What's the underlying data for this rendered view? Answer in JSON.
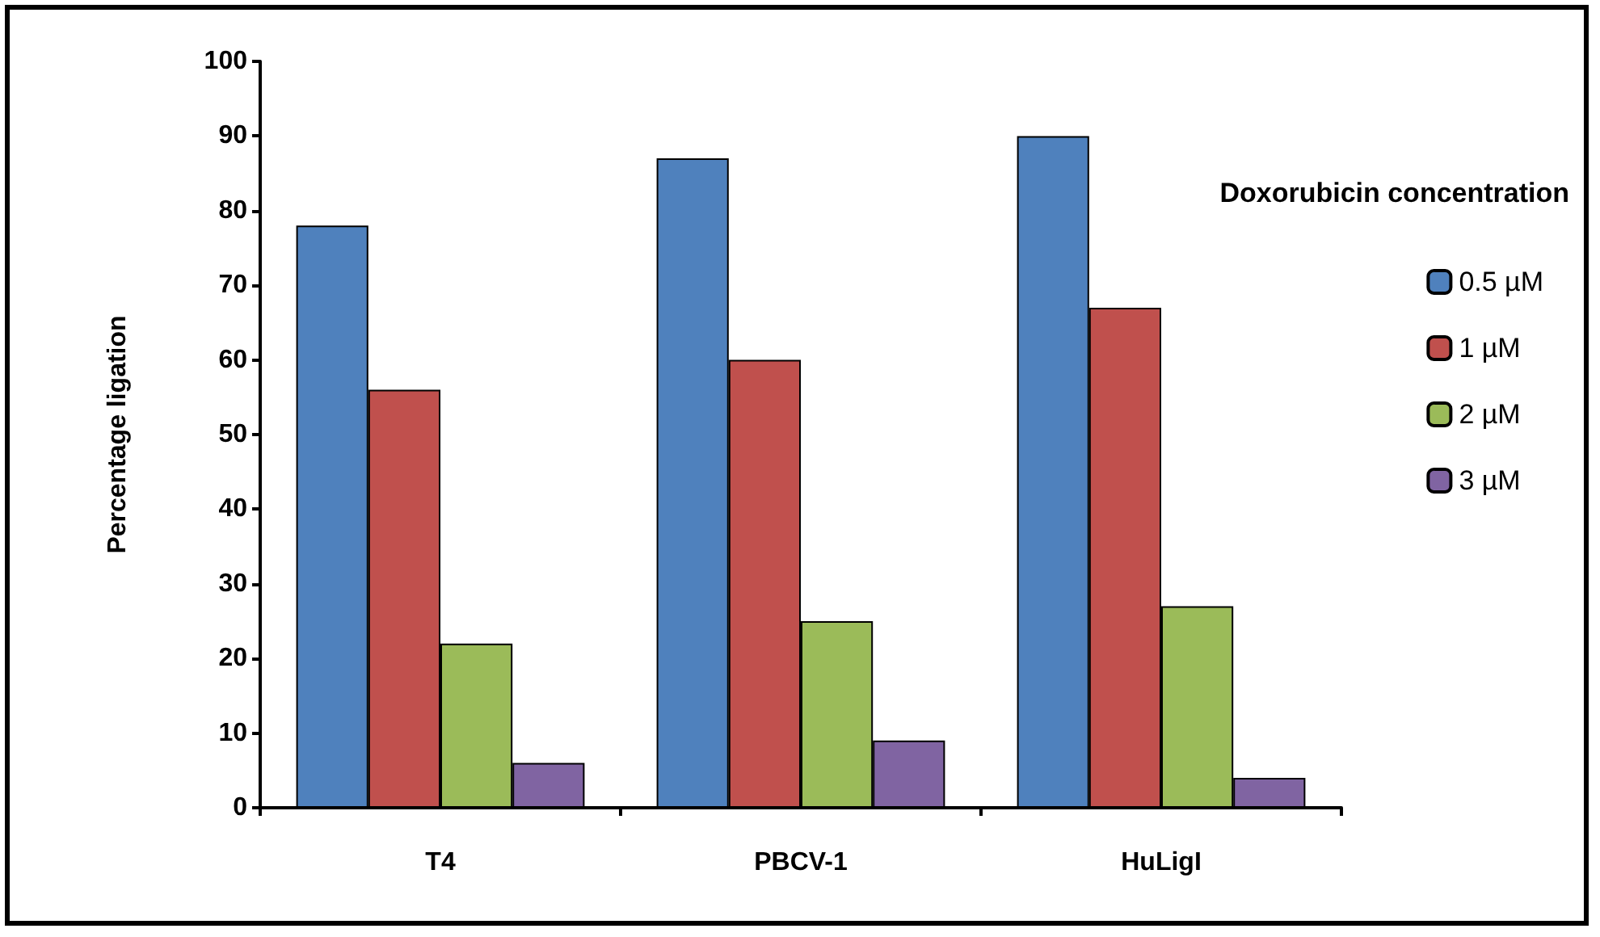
{
  "chart_data": {
    "type": "bar",
    "ylabel": "Percentage ligation",
    "legend_title": "Doxorubicin concentration",
    "categories": [
      "T4",
      "PBCV-1",
      "HuLigI"
    ],
    "series": [
      {
        "name": "0.5 µM",
        "color": "#4f81bd",
        "values": [
          78,
          87,
          90
        ]
      },
      {
        "name": "1 µM",
        "color": "#c0504d",
        "values": [
          56,
          60,
          67
        ]
      },
      {
        "name": "2 µM",
        "color": "#9bbb59",
        "values": [
          22,
          25,
          27
        ]
      },
      {
        "name": "3 µM",
        "color": "#8064a2",
        "values": [
          6,
          9,
          4
        ]
      }
    ],
    "ylim": [
      0,
      100
    ],
    "yticks": [
      0,
      10,
      20,
      30,
      40,
      50,
      60,
      70,
      80,
      90,
      100
    ],
    "grid": false,
    "legend": "right"
  }
}
